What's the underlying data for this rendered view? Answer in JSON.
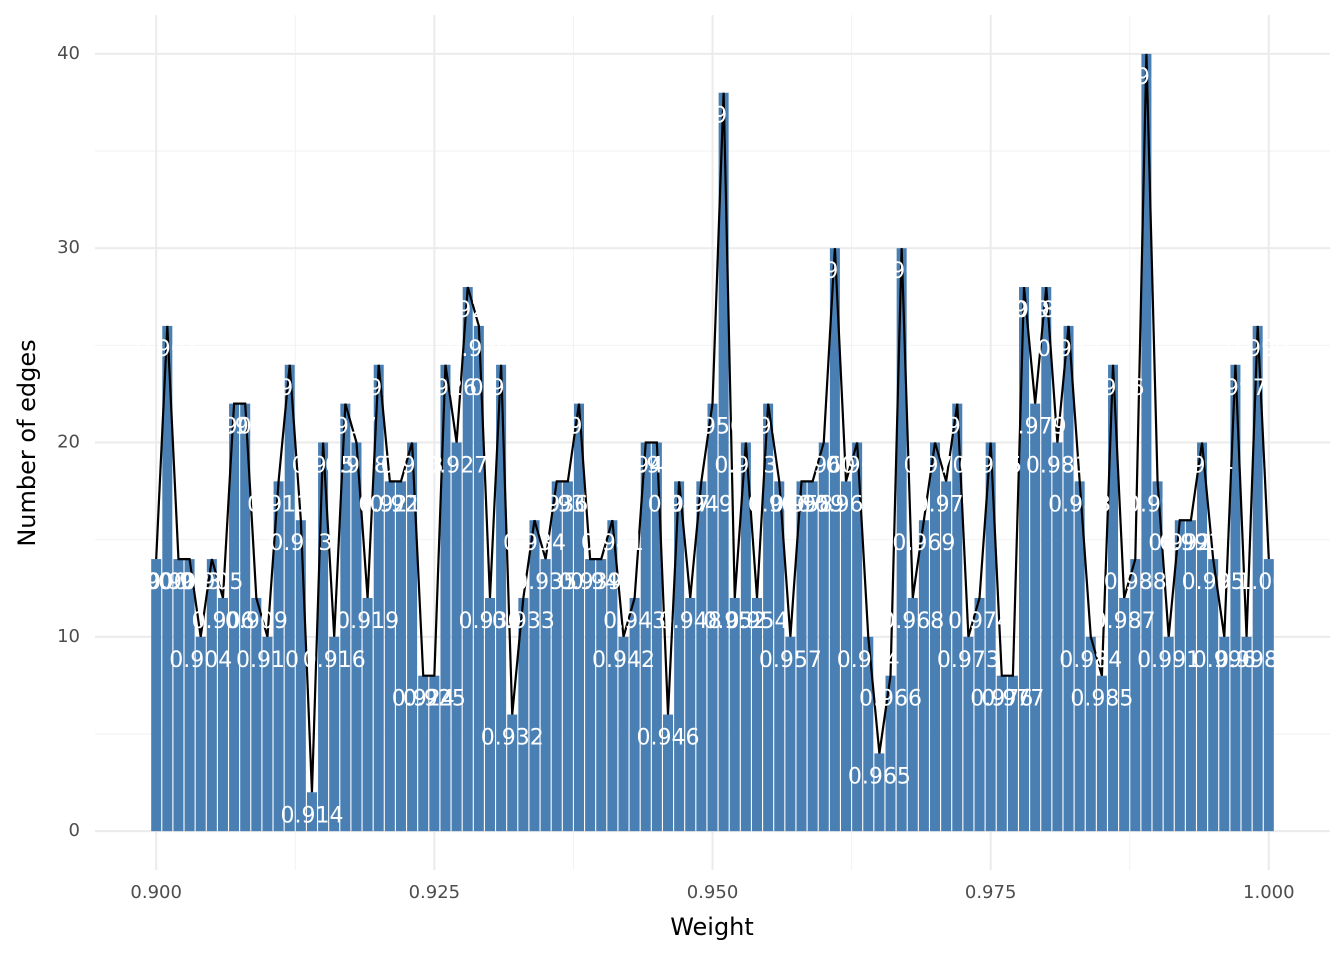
{
  "chart_data": {
    "type": "bar",
    "x_label": "Weight",
    "y_label": "Number of edges",
    "x": [
      0.9,
      0.901,
      0.902,
      0.903,
      0.904,
      0.905,
      0.906,
      0.907,
      0.908,
      0.909,
      0.91,
      0.911,
      0.912,
      0.913,
      0.914,
      0.915,
      0.916,
      0.917,
      0.918,
      0.919,
      0.92,
      0.921,
      0.922,
      0.923,
      0.924,
      0.925,
      0.926,
      0.927,
      0.928,
      0.929,
      0.93,
      0.931,
      0.932,
      0.933,
      0.934,
      0.935,
      0.936,
      0.937,
      0.938,
      0.939,
      0.94,
      0.941,
      0.942,
      0.943,
      0.944,
      0.945,
      0.946,
      0.947,
      0.948,
      0.949,
      0.95,
      0.951,
      0.952,
      0.953,
      0.954,
      0.955,
      0.956,
      0.957,
      0.958,
      0.959,
      0.96,
      0.961,
      0.962,
      0.963,
      0.964,
      0.965,
      0.966,
      0.967,
      0.968,
      0.969,
      0.97,
      0.971,
      0.972,
      0.973,
      0.974,
      0.975,
      0.976,
      0.977,
      0.978,
      0.979,
      0.98,
      0.981,
      0.982,
      0.983,
      0.984,
      0.985,
      0.986,
      0.987,
      0.988,
      0.989,
      0.99,
      0.991,
      0.992,
      0.993,
      0.994,
      0.995,
      0.996,
      0.997,
      0.998,
      0.999,
      1.0
    ],
    "point_labels": [
      "0.900",
      "0.901",
      "0.902",
      "0.903",
      "0.904",
      "0.905",
      "0.906",
      "0.907",
      "0.908",
      "0.909",
      "0.910",
      "0.911",
      "0.912",
      "0.913",
      "0.914",
      "0.915",
      "0.916",
      "0.917",
      "0.918",
      "0.919",
      "0.920",
      "0.921",
      "0.922",
      "0.923",
      "0.924",
      "0.925",
      "0.926",
      "0.927",
      "0.928",
      "0.929",
      "0.930",
      "0.931",
      "0.932",
      "0.933",
      "0.934",
      "0.935",
      "0.936",
      "0.937",
      "0.938",
      "0.939",
      "0.940",
      "0.941",
      "0.942",
      "0.943",
      "0.944",
      "0.945",
      "0.946",
      "0.947",
      "0.948",
      "0.949",
      "0.950",
      "0.951",
      "0.952",
      "0.953",
      "0.954",
      "0.955",
      "0.956",
      "0.957",
      "0.958",
      "0.959",
      "0.960",
      "0.961",
      "0.962",
      "0.963",
      "0.964",
      "0.965",
      "0.966",
      "0.967",
      "0.968",
      "0.969",
      "0.970",
      "0.971",
      "0.972",
      "0.973",
      "0.974",
      "0.975",
      "0.976",
      "0.977",
      "0.978",
      "0.979",
      "0.980",
      "0.981",
      "0.982",
      "0.983",
      "0.984",
      "0.985",
      "0.986",
      "0.987",
      "0.988",
      "0.989",
      "0.990",
      "0.991",
      "0.992",
      "0.993",
      "0.994",
      "0.995",
      "0.996",
      "0.997",
      "0.998",
      "0.999",
      "1.000"
    ],
    "values": [
      14,
      26,
      14,
      14,
      10,
      14,
      12,
      22,
      22,
      12,
      10,
      18,
      24,
      16,
      2,
      20,
      10,
      22,
      20,
      12,
      24,
      18,
      18,
      20,
      8,
      8,
      24,
      20,
      28,
      26,
      12,
      24,
      6,
      12,
      16,
      14,
      18,
      18,
      22,
      14,
      14,
      16,
      10,
      12,
      20,
      20,
      6,
      18,
      12,
      18,
      22,
      38,
      12,
      20,
      12,
      22,
      18,
      10,
      18,
      18,
      20,
      30,
      18,
      20,
      10,
      4,
      8,
      30,
      12,
      16,
      20,
      18,
      22,
      10,
      12,
      20,
      8,
      8,
      28,
      22,
      28,
      20,
      26,
      18,
      10,
      8,
      24,
      12,
      14,
      40,
      18,
      10,
      16,
      16,
      20,
      14,
      10,
      24,
      10,
      26,
      14
    ],
    "color": "#4a7fb4",
    "line_color": "#000000",
    "xlim": [
      0.8945,
      1.0055
    ],
    "xticks": [
      {
        "value": 0.9,
        "label": "0.900"
      },
      {
        "value": 0.925,
        "label": "0.925"
      },
      {
        "value": 0.95,
        "label": "0.950"
      },
      {
        "value": 0.975,
        "label": "0.975"
      },
      {
        "value": 1,
        "label": "1.000"
      }
    ],
    "ylim": [
      -2,
      42
    ],
    "yticks": [
      0,
      10,
      20,
      30,
      40
    ],
    "grid": true
  }
}
